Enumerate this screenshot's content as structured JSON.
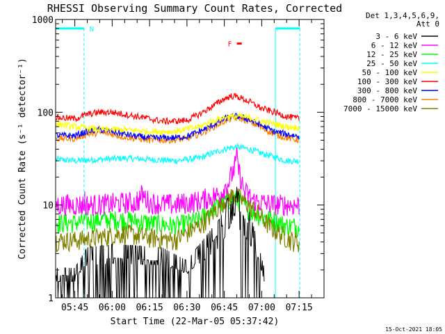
{
  "chart_data": {
    "type": "line",
    "title": "RHESSI Observing Summary Count Rates, Corrected",
    "ylabel": "Corrected Count Rate (s⁻¹ detector⁻¹)",
    "xlabel": "Start Time (22-Mar-05 05:37:42)",
    "yscale": "log",
    "ylim": [
      1,
      1000
    ],
    "xlim_minutes": [
      -7.7,
      100
    ],
    "xticks": [
      {
        "label": "05:45",
        "value": 0
      },
      {
        "label": "06:00",
        "value": 15
      },
      {
        "label": "06:15",
        "value": 30
      },
      {
        "label": "06:30",
        "value": 45
      },
      {
        "label": "06:45",
        "value": 60
      },
      {
        "label": "07:00",
        "value": 75
      },
      {
        "label": "07:15",
        "value": 90
      }
    ],
    "yticks": [
      {
        "label": "1",
        "value": 1
      },
      {
        "label": "10",
        "value": 10
      },
      {
        "label": "100",
        "value": 100
      },
      {
        "label": "1000",
        "value": 1000
      }
    ],
    "legend": {
      "position": "right",
      "header": [
        "Det 1,3,4,5,6,9,",
        "Att 0"
      ]
    },
    "annotations": {
      "night_label": "N",
      "flare_label": "F",
      "night_start": -7.7,
      "night_end": 3.7,
      "night2_start": 80.5,
      "night2_end": 90.3,
      "flare_start": 65,
      "flare_end": 67,
      "flare_level": 550,
      "night_level": 800
    },
    "series": [
      {
        "name": "3 - 6 keV",
        "color": "#000000",
        "x": [
          -7.5,
          0,
          5,
          15,
          25,
          35,
          45,
          55,
          58,
          61,
          63,
          64,
          66,
          70,
          72,
          76
        ],
        "y": [
          1.5,
          1.5,
          2.5,
          2.7,
          2.6,
          2.5,
          1.8,
          4,
          5,
          8,
          11,
          14,
          9,
          6,
          4,
          1.5
        ]
      },
      {
        "name": "6 - 12 keV",
        "color": "#ff00ff",
        "x": [
          -7.5,
          0,
          10,
          20,
          25,
          27,
          30,
          40,
          50,
          58,
          62,
          64,
          65,
          66,
          68,
          72,
          80,
          90
        ],
        "y": [
          10,
          10,
          10,
          10.5,
          10.5,
          13,
          10.5,
          10,
          11,
          13,
          18,
          25,
          32,
          22,
          14,
          11,
          10,
          10
        ],
        "spikes": [
          [
            4,
            14
          ],
          [
            25,
            14
          ],
          [
            64,
            30
          ],
          [
            65,
            32
          ]
        ]
      },
      {
        "name": "12 - 25 keV",
        "color": "#00ff00",
        "x": [
          -7.5,
          0,
          10,
          20,
          30,
          40,
          50,
          55,
          60,
          64,
          66,
          70,
          75,
          80,
          85,
          90
        ],
        "y": [
          6.5,
          6.5,
          7,
          7,
          6.5,
          6,
          7,
          9,
          11,
          12,
          11,
          9,
          7.5,
          7,
          6,
          6
        ]
      },
      {
        "name": "25 - 50 keV",
        "color": "#00ffff",
        "x": [
          -7.5,
          0,
          10,
          20,
          30,
          40,
          50,
          55,
          60,
          63,
          66,
          70,
          75,
          80,
          85,
          90
        ],
        "y": [
          31,
          30,
          31,
          32,
          31,
          30,
          32,
          36,
          40,
          42,
          42,
          40,
          36,
          33,
          30,
          30
        ]
      },
      {
        "name": "50 - 100 keV",
        "color": "#ffff00",
        "x": [
          -7.5,
          0,
          10,
          20,
          30,
          40,
          50,
          55,
          60,
          63,
          66,
          70,
          75,
          80,
          85,
          90
        ],
        "y": [
          75,
          70,
          65,
          65,
          62,
          62,
          70,
          80,
          88,
          90,
          90,
          88,
          80,
          75,
          70,
          68
        ]
      },
      {
        "name": "100 - 300 keV",
        "color": "#ff0000",
        "x": [
          -7.5,
          0,
          5,
          10,
          15,
          20,
          25,
          30,
          35,
          40,
          45,
          50,
          55,
          60,
          63,
          66,
          70,
          75,
          80,
          85,
          90
        ],
        "y": [
          88,
          85,
          95,
          100,
          100,
          95,
          90,
          85,
          80,
          80,
          82,
          95,
          115,
          140,
          150,
          145,
          130,
          110,
          100,
          90,
          85
        ]
      },
      {
        "name": "300 - 800 keV",
        "color": "#0000ff",
        "x": [
          -7.5,
          0,
          5,
          10,
          15,
          20,
          25,
          30,
          35,
          40,
          45,
          50,
          55,
          60,
          63,
          66,
          70,
          75,
          80,
          85,
          90
        ],
        "y": [
          56,
          56,
          62,
          65,
          62,
          58,
          55,
          53,
          53,
          53,
          55,
          62,
          72,
          85,
          90,
          90,
          83,
          72,
          62,
          58,
          55
        ]
      },
      {
        "name": "800 - 7000 keV",
        "color": "#ff8000",
        "x": [
          -7.5,
          0,
          5,
          10,
          15,
          20,
          25,
          30,
          35,
          40,
          45,
          50,
          55,
          60,
          63,
          66,
          70,
          75,
          80,
          85,
          90
        ],
        "y": [
          52,
          52,
          58,
          60,
          58,
          54,
          52,
          50,
          50,
          50,
          52,
          58,
          68,
          80,
          86,
          86,
          80,
          68,
          58,
          53,
          50
        ]
      },
      {
        "name": "7000 - 15000 keV",
        "color": "#808000",
        "x": [
          -7.5,
          0,
          10,
          20,
          30,
          40,
          50,
          55,
          58,
          61,
          64,
          66,
          70,
          74,
          78,
          82,
          86,
          90
        ],
        "y": [
          4.2,
          4.2,
          4.5,
          5,
          4.5,
          4.2,
          6,
          8,
          10,
          12,
          13,
          12,
          10,
          8,
          6,
          5,
          4.3,
          4
        ]
      }
    ]
  },
  "footer": {
    "timestamp": "15-Oct-2021 18:05"
  }
}
